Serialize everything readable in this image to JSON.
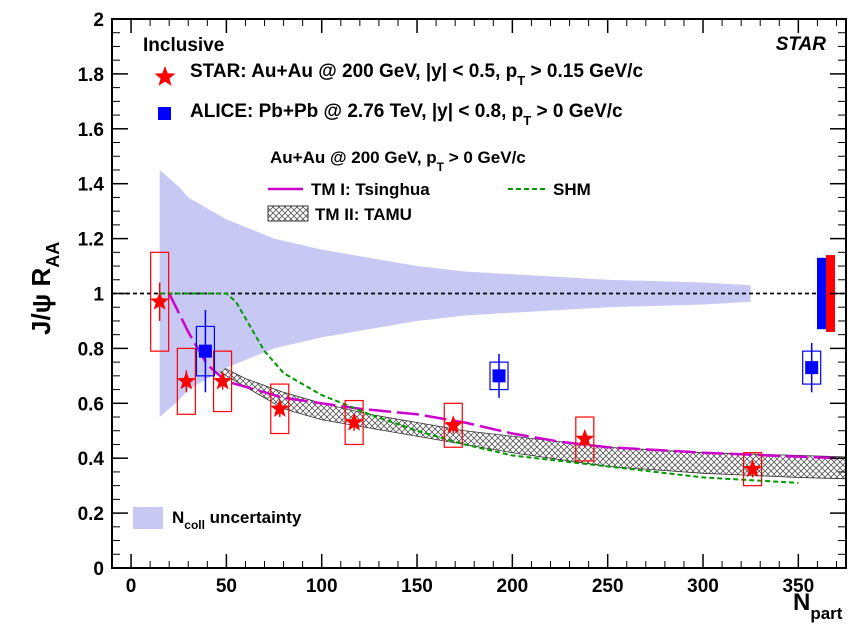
{
  "colors": {
    "star_red": "#ff0000",
    "alice_blue": "#0000ff",
    "tsinghua_magenta": "#cc00cc",
    "shm_green": "#009900",
    "ncoll_band": "#c8c8f5",
    "tamu_hatch": "#555555"
  },
  "chart_data": {
    "type": "scatter",
    "title": "",
    "xlabel": "N",
    "xlabel_sub": "part",
    "ylabel_main": "J/ψ R",
    "ylabel_sub": "AA",
    "xlim": [
      -10,
      375
    ],
    "ylim": [
      0,
      2
    ],
    "x_ticks": [
      "0",
      "50",
      "100",
      "150",
      "200",
      "250",
      "300",
      "350"
    ],
    "y_ticks": [
      "0",
      "0.2",
      "0.4",
      "0.6",
      "0.8",
      "1",
      "1.2",
      "1.4",
      "1.6",
      "1.8",
      "2"
    ],
    "grid": false,
    "reference_line_y": 1,
    "experiment_label": "STAR",
    "legend": {
      "header": "Inclusive",
      "star": "STAR: Au+Au @ 200 GeV, |y| < 0.5, p",
      "star_sub": "T",
      "star_tail": " > 0.15 GeV/c",
      "alice": "ALICE: Pb+Pb @ 2.76 TeV, |y| < 0.8, p",
      "alice_sub": "T",
      "alice_tail": " > 0 GeV/c",
      "models_header": "Au+Au @ 200 GeV, p",
      "models_header_sub": "T",
      "models_header_tail": " > 0 GeV/c",
      "tm1": "TM I: Tsinghua",
      "shm": "SHM",
      "tm2": "TM II: TAMU",
      "ncoll": "N",
      "ncoll_sub": "coll",
      "ncoll_tail": " uncertainty"
    },
    "series": [
      {
        "name": "STAR: Au+Au @ 200 GeV, |y| < 0.5, pT > 0.15 GeV/c",
        "marker": "star",
        "points": [
          {
            "x": 15,
            "y": 0.97,
            "stat": 0.07,
            "sys": 0.18
          },
          {
            "x": 29,
            "y": 0.68,
            "stat": 0.04,
            "sys": 0.12
          },
          {
            "x": 48,
            "y": 0.68,
            "stat": 0.03,
            "sys": 0.11
          },
          {
            "x": 78,
            "y": 0.58,
            "stat": 0.03,
            "sys": 0.09
          },
          {
            "x": 117,
            "y": 0.53,
            "stat": 0.03,
            "sys": 0.08
          },
          {
            "x": 169,
            "y": 0.52,
            "stat": 0.03,
            "sys": 0.08
          },
          {
            "x": 238,
            "y": 0.47,
            "stat": 0.03,
            "sys": 0.08
          },
          {
            "x": 326,
            "y": 0.36,
            "stat": 0.03,
            "sys": 0.06
          }
        ]
      },
      {
        "name": "ALICE: Pb+Pb @ 2.76 TeV, |y| < 0.8, pT > 0 GeV/c",
        "marker": "square",
        "points": [
          {
            "x": 39,
            "y": 0.79,
            "stat": 0.15,
            "sys": 0.09
          },
          {
            "x": 193,
            "y": 0.7,
            "stat": 0.08,
            "sys": 0.05
          },
          {
            "x": 357,
            "y": 0.73,
            "stat": 0.09,
            "sys": 0.06
          }
        ]
      },
      {
        "name": "TM I: Tsinghua",
        "line": "dashed",
        "points": [
          [
            20,
            1.0
          ],
          [
            30,
            0.86
          ],
          [
            40,
            0.74
          ],
          [
            50,
            0.68
          ],
          [
            60,
            0.66
          ],
          [
            80,
            0.62
          ],
          [
            100,
            0.6
          ],
          [
            120,
            0.58
          ],
          [
            150,
            0.56
          ],
          [
            175,
            0.53
          ],
          [
            200,
            0.49
          ],
          [
            225,
            0.46
          ],
          [
            250,
            0.44
          ],
          [
            300,
            0.42
          ],
          [
            335,
            0.41
          ],
          [
            370,
            0.4
          ]
        ]
      },
      {
        "name": "SHM",
        "line": "short-dashed",
        "points": [
          [
            15,
            1.0
          ],
          [
            50,
            1.0
          ],
          [
            55,
            0.97
          ],
          [
            60,
            0.91
          ],
          [
            70,
            0.79
          ],
          [
            80,
            0.71
          ],
          [
            100,
            0.63
          ],
          [
            125,
            0.56
          ],
          [
            150,
            0.5
          ],
          [
            175,
            0.45
          ],
          [
            200,
            0.41
          ],
          [
            250,
            0.37
          ],
          [
            300,
            0.33
          ],
          [
            350,
            0.31
          ]
        ]
      }
    ],
    "bands": [
      {
        "name": "TM II: TAMU",
        "x": [
          40,
          60,
          80,
          100,
          125,
          150,
          175,
          200,
          250,
          300,
          350,
          375
        ],
        "upper": [
          0.76,
          0.69,
          0.64,
          0.6,
          0.56,
          0.53,
          0.5,
          0.48,
          0.44,
          0.42,
          0.41,
          0.405
        ],
        "lower": [
          0.74,
          0.66,
          0.58,
          0.54,
          0.51,
          0.48,
          0.45,
          0.42,
          0.37,
          0.345,
          0.33,
          0.325
        ]
      },
      {
        "name": "Ncoll uncertainty",
        "x": [
          15,
          25,
          30,
          50,
          75,
          100,
          125,
          150,
          175,
          200,
          250,
          300,
          325
        ],
        "upper": [
          1.45,
          1.39,
          1.35,
          1.27,
          1.2,
          1.16,
          1.13,
          1.1,
          1.08,
          1.07,
          1.05,
          1.04,
          1.03
        ],
        "lower": [
          0.55,
          0.61,
          0.65,
          0.73,
          0.8,
          0.84,
          0.87,
          0.9,
          0.92,
          0.93,
          0.95,
          0.96,
          0.97
        ]
      }
    ],
    "global_uncertainty_boxes": [
      {
        "name": "ALICE",
        "low": 0.87,
        "high": 1.13
      },
      {
        "name": "STAR",
        "low": 0.86,
        "high": 1.14
      }
    ]
  }
}
